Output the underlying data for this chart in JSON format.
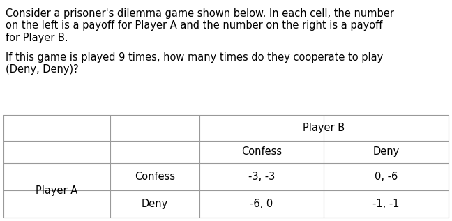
{
  "paragraph1_lines": [
    "Consider a prisoner's dilemma game shown below. In each cell, the number",
    "on the left is a payoff for Player A and the number on the right is a payoff",
    "for Player B."
  ],
  "paragraph2_lines": [
    "If this game is played 9 times, how many times do they cooperate to play",
    "(Deny, Deny)?"
  ],
  "table": {
    "player_b_label": "Player B",
    "player_a_label": "Player A",
    "col_headers": [
      "Confess",
      "Deny"
    ],
    "row_headers": [
      "Confess",
      "Deny"
    ],
    "cells": [
      [
        "-3, -3",
        "0, -6"
      ],
      [
        "-6, 0",
        "-1, -1"
      ]
    ]
  },
  "bg_color": "#ffffff",
  "text_color": "#000000",
  "font_size_body": 10.5,
  "font_size_table": 10.5,
  "line_color": "#999999",
  "fig_width": 6.48,
  "fig_height": 3.17,
  "dpi": 100
}
